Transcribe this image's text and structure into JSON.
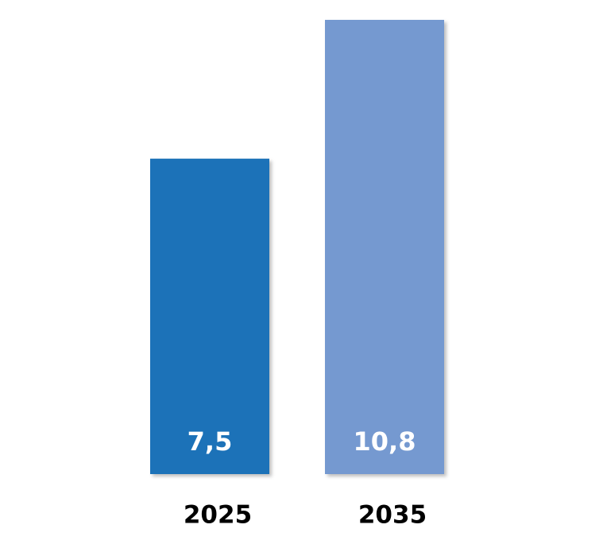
{
  "chart_data": {
    "type": "bar",
    "categories": [
      "2025",
      "2035"
    ],
    "values": [
      7.5,
      10.8
    ],
    "value_labels": [
      "7,5",
      "10,8"
    ],
    "colors": [
      "#1f72b8",
      "#7599d0"
    ]
  }
}
